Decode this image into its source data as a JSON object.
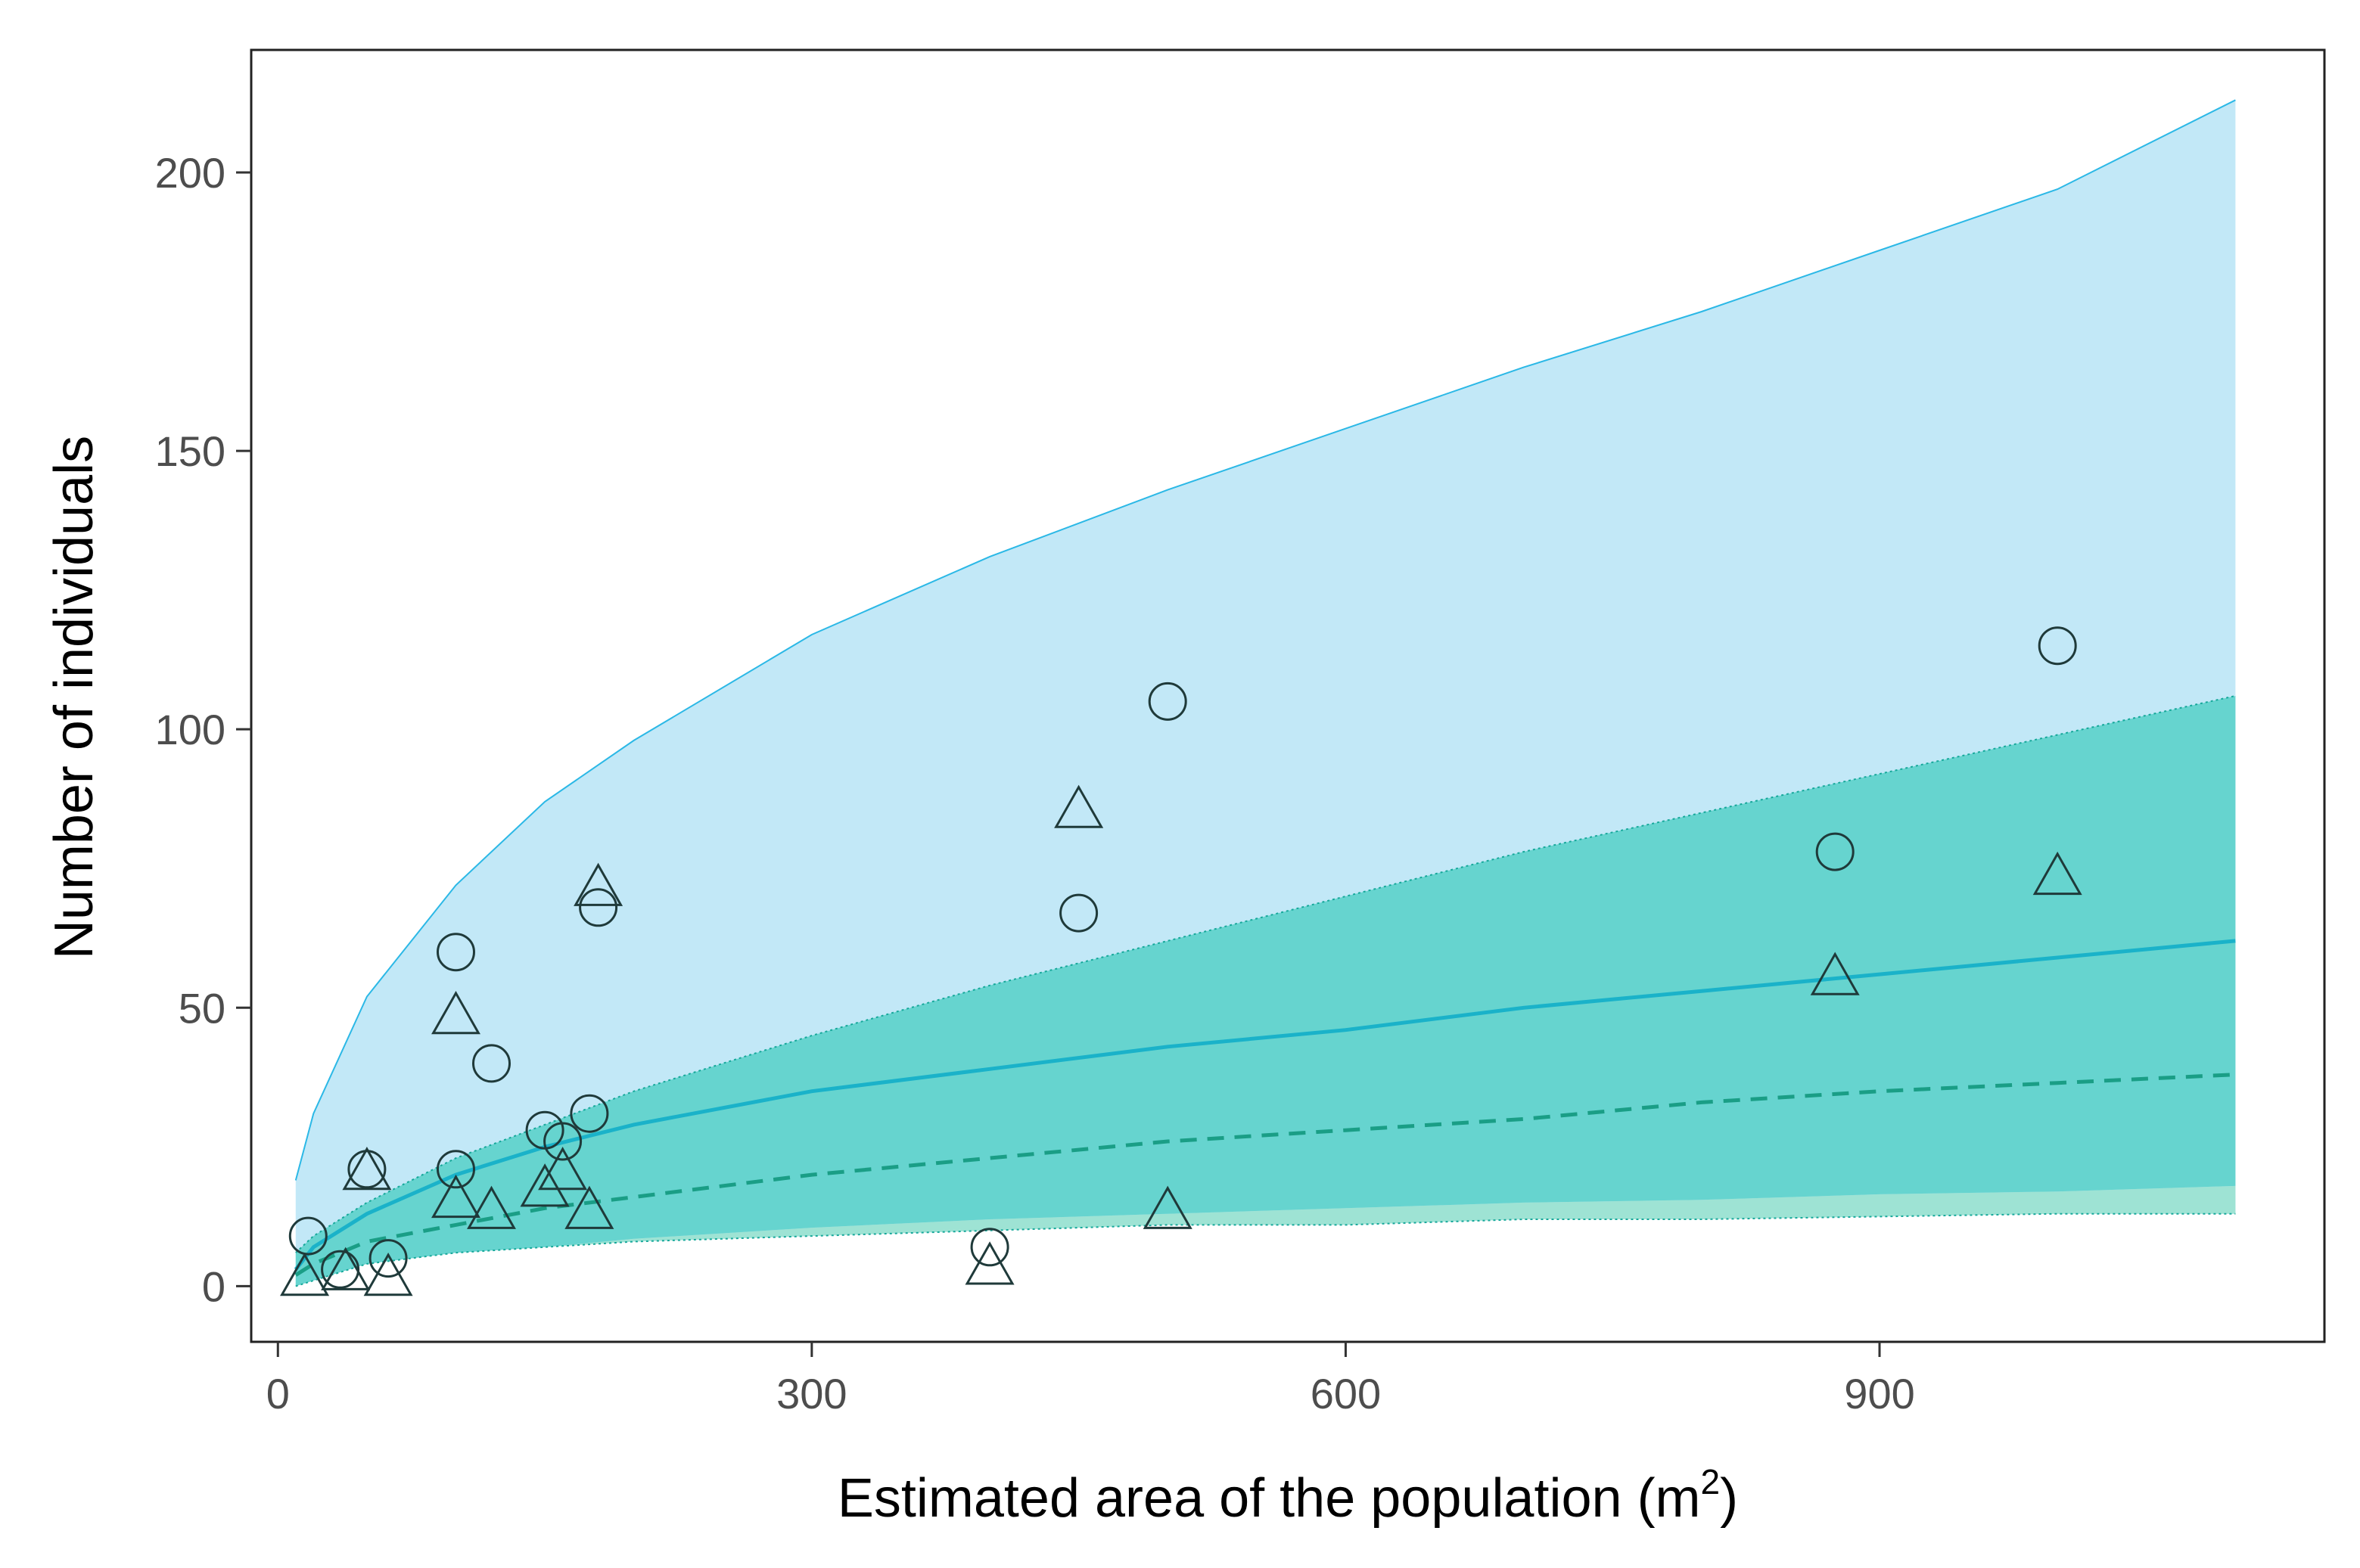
{
  "chart_data": {
    "type": "scatter",
    "xlabel": "Estimated area of the population (m",
    "xlabel_superscript": "2",
    "xlabel_suffix": ")",
    "ylabel": "Number of individuals",
    "xlim": [
      -15,
      1150
    ],
    "ylim": [
      -10,
      222
    ],
    "x_ticks": [
      0,
      300,
      600,
      900
    ],
    "x_tick_labels": [
      "0",
      "300",
      "600",
      "900"
    ],
    "y_ticks": [
      0,
      50,
      100,
      150,
      200
    ],
    "y_tick_labels": [
      "0",
      "50",
      "100",
      "150",
      "200"
    ],
    "grid": false,
    "colors": {
      "outer_band": "#c2e8f7",
      "outer_band_edge": "#2bb8e6",
      "inner_band": "#66d4cf",
      "inner_band_edge": "#16a89a",
      "lower_band_strip": "#9ee3d4",
      "solid_line": "#1ab2c9",
      "dashed_line": "#1a9e86",
      "marker_stroke": "#1f3a3a"
    },
    "series": [
      {
        "name": "circles",
        "marker": "circle",
        "points": [
          [
            17,
            9
          ],
          [
            35,
            3
          ],
          [
            50,
            21
          ],
          [
            62,
            5
          ],
          [
            100,
            60
          ],
          [
            100,
            21
          ],
          [
            120,
            40
          ],
          [
            150,
            28
          ],
          [
            160,
            26
          ],
          [
            175,
            31
          ],
          [
            180,
            68
          ],
          [
            400,
            7
          ],
          [
            450,
            67
          ],
          [
            500,
            105
          ],
          [
            875,
            78
          ],
          [
            1000,
            115
          ]
        ]
      },
      {
        "name": "triangles",
        "marker": "triangle",
        "points": [
          [
            15,
            1
          ],
          [
            38,
            2
          ],
          [
            50,
            20
          ],
          [
            62,
            1
          ],
          [
            100,
            48
          ],
          [
            100,
            15
          ],
          [
            120,
            13
          ],
          [
            150,
            17
          ],
          [
            160,
            20
          ],
          [
            175,
            13
          ],
          [
            180,
            71
          ],
          [
            400,
            3
          ],
          [
            450,
            85
          ],
          [
            500,
            13
          ],
          [
            875,
            55
          ],
          [
            1000,
            73
          ]
        ]
      }
    ],
    "bands": {
      "x": [
        10,
        20,
        50,
        100,
        150,
        200,
        300,
        400,
        500,
        600,
        700,
        800,
        900,
        1000,
        1100
      ],
      "outer_upper": [
        19,
        31,
        52,
        72,
        87,
        98,
        117,
        131,
        143,
        154,
        165,
        175,
        186,
        197,
        213
      ],
      "outer_lower": [
        0,
        1,
        4,
        6,
        7,
        8,
        9,
        10,
        11,
        11,
        12,
        12,
        12.5,
        13,
        13
      ],
      "inner_upper": [
        6,
        9,
        15,
        23,
        29,
        35,
        45,
        54,
        62,
        70,
        78,
        85,
        92,
        99,
        106
      ],
      "inner_lower": [
        0,
        1,
        4,
        6,
        7,
        8.5,
        10.5,
        12,
        13,
        14,
        15,
        15.5,
        16.5,
        17,
        18
      ]
    },
    "lines": [
      {
        "name": "solid fit",
        "style": "solid",
        "x": [
          10,
          20,
          50,
          100,
          150,
          200,
          300,
          400,
          500,
          600,
          700,
          800,
          900,
          1000,
          1100
        ],
        "y": [
          3,
          7,
          13,
          20,
          25,
          29,
          35,
          39,
          43,
          46,
          50,
          53,
          56,
          59,
          62
        ]
      },
      {
        "name": "dashed fit",
        "style": "dashed",
        "x": [
          10,
          20,
          50,
          100,
          150,
          200,
          300,
          400,
          500,
          600,
          700,
          800,
          900,
          1000,
          1100
        ],
        "y": [
          2,
          4,
          8,
          11,
          14,
          16,
          20,
          23,
          26,
          28,
          30,
          33,
          35,
          36.5,
          38
        ]
      }
    ]
  }
}
